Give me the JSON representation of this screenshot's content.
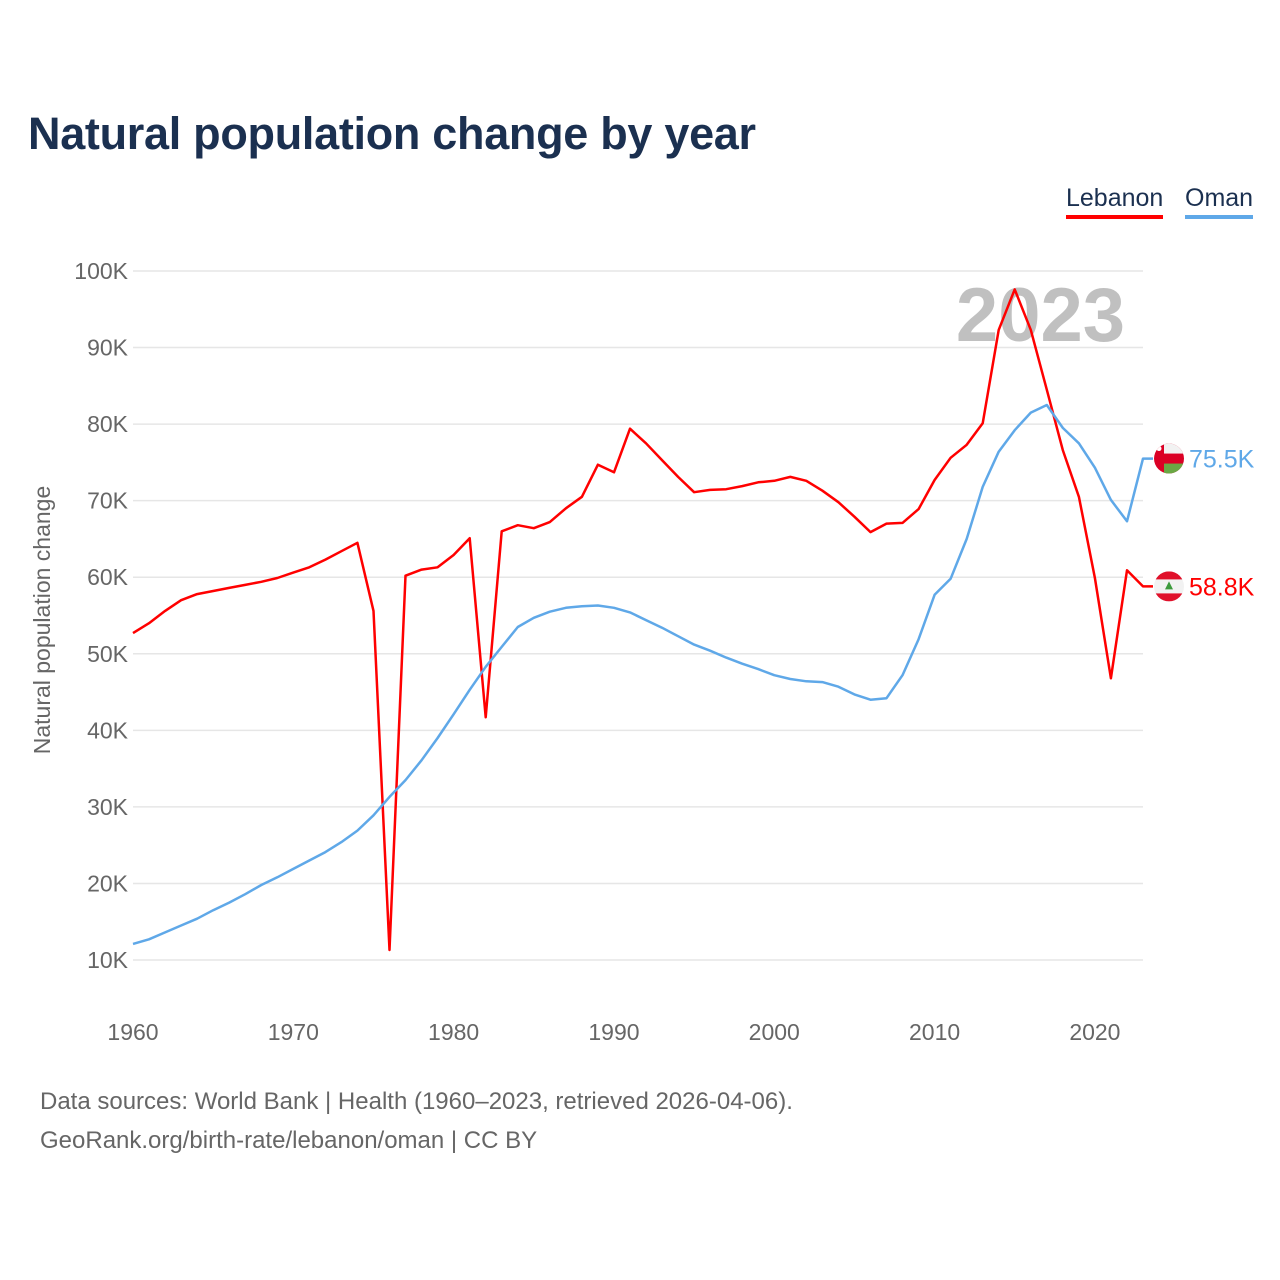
{
  "chart_data": {
    "type": "line",
    "title": "Natural population change by year",
    "ylabel": "Natural population change",
    "xlabel": "",
    "xlim": [
      1960,
      2023
    ],
    "ylim": [
      10000,
      100000
    ],
    "yticks": [
      10000,
      20000,
      30000,
      40000,
      50000,
      60000,
      70000,
      80000,
      90000,
      100000
    ],
    "ytick_labels": [
      "10K",
      "20K",
      "30K",
      "40K",
      "50K",
      "60K",
      "70K",
      "80K",
      "90K",
      "100K"
    ],
    "xticks": [
      1960,
      1970,
      1980,
      1990,
      2000,
      2010,
      2020
    ],
    "xtick_labels": [
      "1960",
      "1970",
      "1980",
      "1990",
      "2000",
      "2010",
      "2020"
    ],
    "grid": true,
    "legend_position": "top-right",
    "year_label": "2023",
    "x_start": 1960,
    "series": [
      {
        "name": "Lebanon",
        "color": "#ff0000",
        "end_label": "58.8K",
        "values": [
          52700,
          54000,
          55600,
          57000,
          57800,
          58200,
          58600,
          59000,
          59400,
          59900,
          60600,
          61300,
          62300,
          63400,
          64500,
          55600,
          11300,
          60200,
          61000,
          61300,
          62900,
          65100,
          41700,
          66000,
          66800,
          66400,
          67200,
          69000,
          70500,
          74700,
          73700,
          79400,
          77500,
          75300,
          73100,
          71100,
          71400,
          71500,
          71900,
          72400,
          72600,
          73100,
          72600,
          71300,
          69800,
          67900,
          65900,
          67000,
          67100,
          68900,
          72700,
          75600,
          77300,
          80100,
          92300,
          97600,
          92300,
          84500,
          76600,
          70500,
          59900,
          46800,
          60900,
          58800
        ]
      },
      {
        "name": "Oman",
        "color": "#5fa8e8",
        "end_label": "75.5K",
        "values": [
          12100,
          12700,
          13600,
          14500,
          15400,
          16500,
          17500,
          18600,
          19800,
          20800,
          21900,
          23000,
          24100,
          25400,
          26900,
          28900,
          31300,
          33500,
          36100,
          39000,
          42100,
          45300,
          48300,
          50900,
          53500,
          54700,
          55500,
          56000,
          56200,
          56300,
          56000,
          55400,
          54400,
          53400,
          52300,
          51200,
          50400,
          49500,
          48700,
          48000,
          47200,
          46700,
          46400,
          46300,
          45700,
          44700,
          44000,
          44200,
          47200,
          51900,
          57700,
          59800,
          65000,
          71800,
          76400,
          79200,
          81500,
          82500,
          79500,
          77500,
          74300,
          70100,
          67300,
          75500
        ]
      }
    ]
  },
  "legend": {
    "items": [
      "Lebanon",
      "Oman"
    ]
  },
  "footer": {
    "sources": "Data sources: World Bank | Health (1960–2023, retrieved 2026-04-06).",
    "credit": "GeoRank.org/birth-rate/lebanon/oman | CC BY"
  }
}
